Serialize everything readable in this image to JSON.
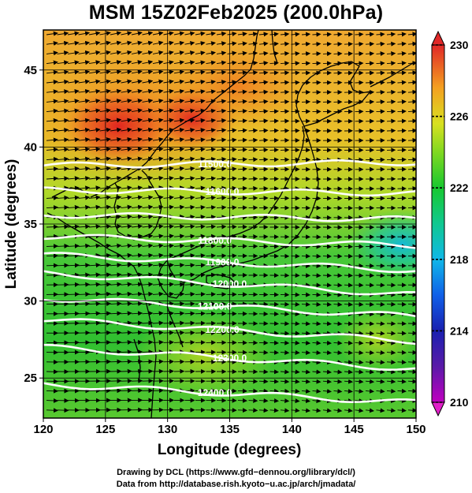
{
  "title": "MSM 15Z02Feb2025 (200.0hPa)",
  "axes": {
    "xlabel": "Longitude (degrees)",
    "ylabel": "Latitude  (degrees)",
    "xlim": [
      120,
      150
    ],
    "ylim": [
      22.4,
      47.6
    ],
    "xticks": [
      "120",
      "125",
      "130",
      "135",
      "140",
      "145",
      "150"
    ],
    "yticks": [
      "25",
      "30",
      "35",
      "40",
      "45"
    ]
  },
  "colorbar": {
    "labels": [
      "230",
      "226",
      "222",
      "218",
      "214",
      "210"
    ],
    "min": 210,
    "max": 230
  },
  "chart_data": {
    "type": "heatmap",
    "variable_range": [
      210,
      230
    ],
    "contours": [
      {
        "label": "11500.0",
        "lat_west": 38.8,
        "lat_east": 39.0
      },
      {
        "label": "11600.0",
        "lat_west": 37.2,
        "lat_east": 37.0
      },
      {
        "label": "11700.0",
        "lat_west": 35.6,
        "lat_east": 35.3
      },
      {
        "label": "11800.0",
        "lat_west": 34.2,
        "lat_east": 33.6
      },
      {
        "label": "11900.0",
        "lat_west": 33.0,
        "lat_east": 32.0
      },
      {
        "label": "12000.0",
        "lat_west": 31.8,
        "lat_east": 30.4
      },
      {
        "label": "12100.0",
        "lat_west": 30.2,
        "lat_east": 29.0
      },
      {
        "label": "12200.0",
        "lat_west": 28.8,
        "lat_east": 27.4
      },
      {
        "label": "12300.0",
        "lat_west": 27.0,
        "lat_east": 25.6
      },
      {
        "label": "12400.0",
        "lat_west": 24.6,
        "lat_east": 23.4
      }
    ],
    "visible_contour_labels": [
      "11500.0",
      "11600.0",
      "11800.0",
      "11900.0",
      "12000.0",
      "12100.0",
      "12200.0",
      "12300.0",
      "12400.0"
    ]
  },
  "credits": {
    "line1": "Drawing by DCL (https://www.gfd−dennou.org/library/dcl/)",
    "line2": "Data from http://database.rish.kyoto−u.ac.jp/arch/jmadata/"
  }
}
